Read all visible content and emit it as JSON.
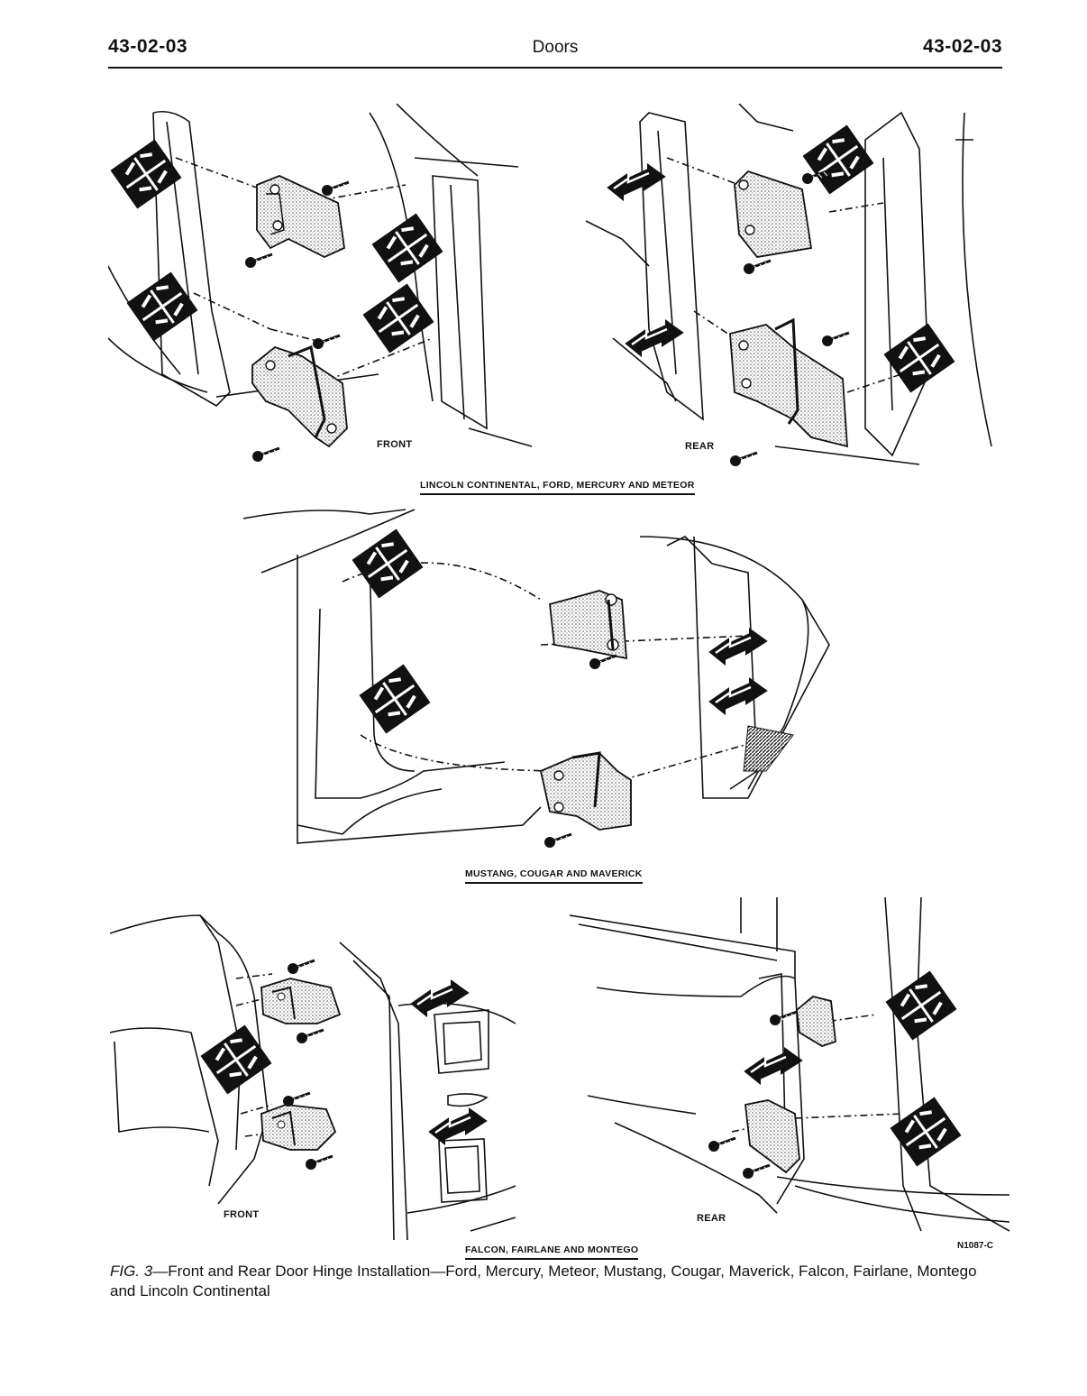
{
  "header": {
    "left_code": "43-02-03",
    "title": "Doors",
    "right_code": "43-02-03"
  },
  "figures": {
    "top": {
      "caption": "LINCOLN CONTINENTAL, FORD, MERCURY AND METEOR",
      "front_label": "FRONT",
      "rear_label": "REAR"
    },
    "middle": {
      "caption": "MUSTANG, COUGAR AND MAVERICK"
    },
    "bottom": {
      "caption": "FALCON, FAIRLANE AND MONTEGO",
      "front_label": "FRONT",
      "rear_label": "REAR"
    }
  },
  "drawing_code": "N1087-C",
  "caption": {
    "fig_number": "FIG. 3",
    "text": "—Front and Rear Door Hinge Installation—Ford, Mercury, Meteor, Mustang, Cougar, Maverick, Falcon, Fairlane, Montego and Lincoln Continental"
  }
}
